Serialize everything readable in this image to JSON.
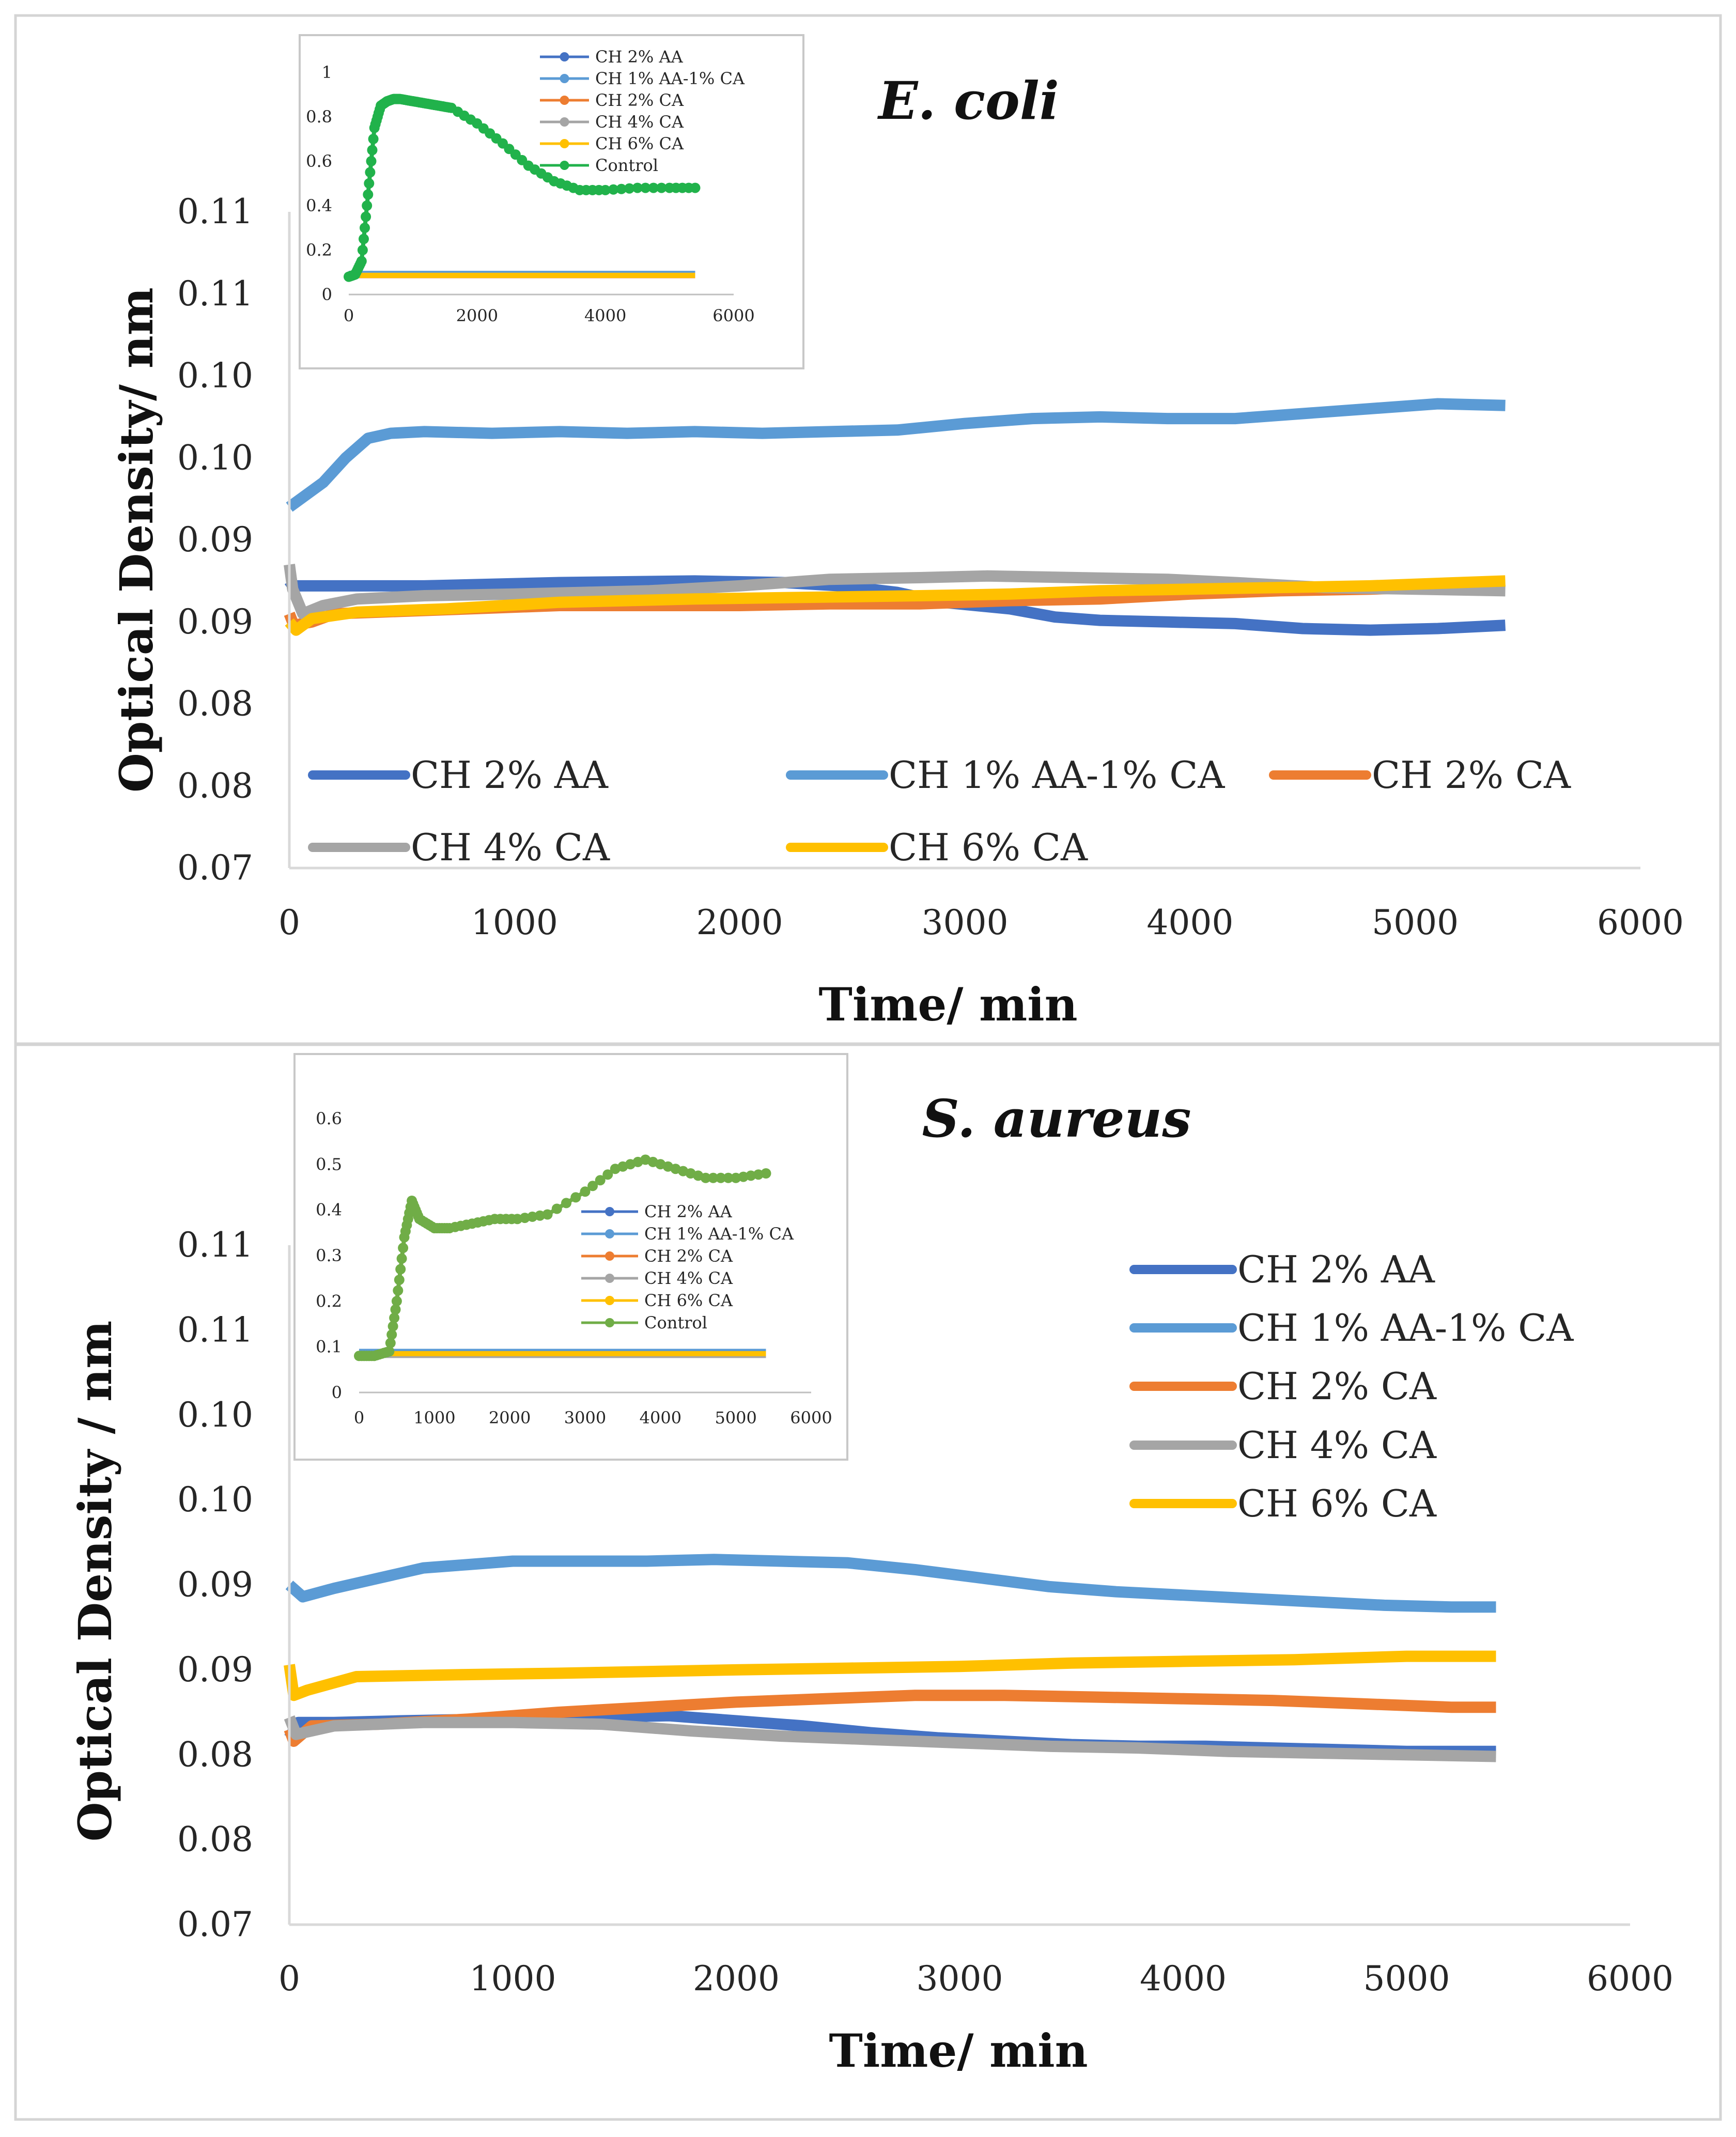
{
  "chart_data": [
    {
      "type": "line",
      "title": "E. coli",
      "xlabel": "Time/ min",
      "ylabel": "Optical Density/ nm",
      "xlim": [
        0,
        6000
      ],
      "ylim": [
        0.07,
        0.11
      ],
      "x_ticks": [
        "0",
        "1000",
        "2000",
        "3000",
        "4000",
        "5000",
        "6000"
      ],
      "y_ticks": [
        "0.07",
        "0.08",
        "0.08",
        "0.09",
        "0.09",
        "0.10",
        "0.10",
        "0.11",
        "0.11"
      ],
      "legend_position": "bottom-inside",
      "series": [
        {
          "name": "CH 2% AA",
          "color": "#4472C4",
          "x": [
            0,
            10,
            30,
            300,
            600,
            1200,
            1800,
            2200,
            2450,
            2700,
            2900,
            3200,
            3400,
            3600,
            3900,
            4200,
            4500,
            4800,
            5100,
            5400
          ],
          "y": [
            0.0875,
            0.0873,
            0.0872,
            0.0872,
            0.0872,
            0.0874,
            0.0875,
            0.0874,
            0.0872,
            0.0868,
            0.0862,
            0.0858,
            0.0853,
            0.0851,
            0.085,
            0.0849,
            0.0846,
            0.0845,
            0.0846,
            0.0848
          ]
        },
        {
          "name": "CH 1% AA-1% CA",
          "color": "#5B9BD5",
          "x": [
            0,
            60,
            150,
            250,
            350,
            450,
            600,
            900,
            1200,
            1500,
            1800,
            2100,
            2400,
            2700,
            3000,
            3300,
            3600,
            3900,
            4200,
            4500,
            4800,
            5100,
            5400
          ],
          "y": [
            0.092,
            0.0926,
            0.0935,
            0.095,
            0.0962,
            0.0965,
            0.0966,
            0.0965,
            0.0966,
            0.0965,
            0.0966,
            0.0965,
            0.0966,
            0.0967,
            0.0971,
            0.0974,
            0.0975,
            0.0974,
            0.0974,
            0.0977,
            0.098,
            0.0983,
            0.0982
          ]
        },
        {
          "name": "CH 2% CA",
          "color": "#ED7D31",
          "x": [
            0,
            20,
            100,
            200,
            400,
            800,
            1200,
            1600,
            2000,
            2400,
            2800,
            3200,
            3600,
            4000,
            4400,
            4800,
            5200,
            5400
          ],
          "y": [
            0.0855,
            0.0848,
            0.085,
            0.0855,
            0.0856,
            0.0858,
            0.086,
            0.086,
            0.086,
            0.0861,
            0.0861,
            0.0863,
            0.0864,
            0.0867,
            0.0869,
            0.087,
            0.0872,
            0.0872
          ]
        },
        {
          "name": "CH 4% CA",
          "color": "#A5A5A5",
          "x": [
            0,
            15,
            60,
            150,
            300,
            600,
            1000,
            1300,
            1600,
            2000,
            2400,
            2800,
            3100,
            3500,
            3900,
            4200,
            4600,
            5000,
            5400
          ],
          "y": [
            0.0885,
            0.087,
            0.0855,
            0.086,
            0.0864,
            0.0866,
            0.0867,
            0.0868,
            0.0869,
            0.0872,
            0.0876,
            0.0877,
            0.0878,
            0.0877,
            0.0876,
            0.0874,
            0.0871,
            0.087,
            0.0869
          ]
        },
        {
          "name": "CH 6% CA",
          "color": "#FFC000",
          "x": [
            0,
            30,
            100,
            300,
            700,
            1200,
            1800,
            2300,
            2800,
            3200,
            3600,
            4000,
            4400,
            4800,
            5200,
            5400
          ],
          "y": [
            0.085,
            0.0845,
            0.0852,
            0.0856,
            0.0858,
            0.0862,
            0.0864,
            0.0865,
            0.0866,
            0.0867,
            0.0869,
            0.087,
            0.0871,
            0.0872,
            0.0874,
            0.0875
          ]
        }
      ],
      "inset": {
        "xlim": [
          0,
          6000
        ],
        "ylim": [
          0,
          1
        ],
        "x_ticks": [
          "0",
          "2000",
          "4000",
          "6000"
        ],
        "y_ticks": [
          "0",
          "0.2",
          "0.4",
          "0.6",
          "0.8",
          "1"
        ],
        "legend_position": "top-right",
        "series": [
          {
            "name": "CH 2% AA",
            "color": "#4472C4",
            "x": [
              0,
              5400
            ],
            "y": [
              0.09,
              0.09
            ]
          },
          {
            "name": "CH 1% AA-1% CA",
            "color": "#5B9BD5",
            "x": [
              0,
              5400
            ],
            "y": [
              0.095,
              0.095
            ]
          },
          {
            "name": "CH 2% CA",
            "color": "#ED7D31",
            "x": [
              0,
              5400
            ],
            "y": [
              0.085,
              0.085
            ]
          },
          {
            "name": "CH 4% CA",
            "color": "#A5A5A5",
            "x": [
              0,
              5400
            ],
            "y": [
              0.087,
              0.087
            ]
          },
          {
            "name": "CH 6% CA",
            "color": "#FFC000",
            "x": [
              0,
              5400
            ],
            "y": [
              0.086,
              0.086
            ]
          },
          {
            "name": "Control",
            "color": "#21B24B",
            "x": [
              0,
              100,
              200,
              300,
              400,
              500,
              600,
              700,
              800,
              1000,
              1200,
              1400,
              1600,
              2000,
              2400,
              2800,
              3200,
              3600,
              4000,
              4500,
              5000,
              5400
            ],
            "y": [
              0.08,
              0.09,
              0.15,
              0.45,
              0.75,
              0.85,
              0.87,
              0.88,
              0.88,
              0.87,
              0.86,
              0.85,
              0.84,
              0.77,
              0.68,
              0.58,
              0.51,
              0.47,
              0.47,
              0.48,
              0.48,
              0.48
            ]
          }
        ]
      }
    },
    {
      "type": "line",
      "title": "S. aureus",
      "xlabel": "Time/ min",
      "ylabel": "Optical Density / nm",
      "xlim": [
        0,
        6000
      ],
      "ylim": [
        0.07,
        0.11
      ],
      "x_ticks": [
        "0",
        "1000",
        "2000",
        "3000",
        "4000",
        "5000",
        "6000"
      ],
      "y_ticks": [
        "0.07",
        "0.08",
        "0.08",
        "0.09",
        "0.09",
        "0.10",
        "0.10",
        "0.11",
        "0.11"
      ],
      "legend_position": "right",
      "series": [
        {
          "name": "CH 2% AA",
          "color": "#4472C4",
          "x": [
            0,
            40,
            200,
            500,
            900,
            1300,
            1700,
            2000,
            2300,
            2600,
            2900,
            3200,
            3500,
            3800,
            4100,
            4400,
            4700,
            5000,
            5400
          ],
          "y": [
            0.081,
            0.0819,
            0.0819,
            0.082,
            0.0821,
            0.0822,
            0.0823,
            0.082,
            0.0817,
            0.0813,
            0.081,
            0.0808,
            0.0806,
            0.0805,
            0.0805,
            0.0804,
            0.0803,
            0.0802,
            0.0802
          ]
        },
        {
          "name": "CH 1% AA-1% CA",
          "color": "#5B9BD5",
          "x": [
            0,
            60,
            200,
            400,
            600,
            800,
            1000,
            1300,
            1600,
            1900,
            2200,
            2500,
            2800,
            3100,
            3400,
            3700,
            4000,
            4300,
            4600,
            4900,
            5200,
            5400
          ],
          "y": [
            0.09,
            0.0893,
            0.0898,
            0.0904,
            0.091,
            0.0912,
            0.0914,
            0.0914,
            0.0914,
            0.0915,
            0.0914,
            0.0913,
            0.0909,
            0.0904,
            0.0899,
            0.0896,
            0.0894,
            0.0892,
            0.089,
            0.0888,
            0.0887,
            0.0887
          ]
        },
        {
          "name": "CH 2% CA",
          "color": "#ED7D31",
          "x": [
            0,
            20,
            100,
            400,
            800,
            1200,
            1600,
            2000,
            2400,
            2800,
            3200,
            3600,
            4000,
            4400,
            4800,
            5200,
            5400
          ],
          "y": [
            0.0815,
            0.0808,
            0.0817,
            0.0818,
            0.0821,
            0.0825,
            0.0828,
            0.0831,
            0.0833,
            0.0835,
            0.0835,
            0.0834,
            0.0833,
            0.0832,
            0.083,
            0.0828,
            0.0828
          ]
        },
        {
          "name": "CH 4% CA",
          "color": "#A5A5A5",
          "x": [
            0,
            30,
            200,
            600,
            1000,
            1400,
            1800,
            2200,
            2600,
            3000,
            3400,
            3800,
            4200,
            4600,
            5000,
            5400
          ],
          "y": [
            0.0822,
            0.0812,
            0.0817,
            0.0819,
            0.0819,
            0.0818,
            0.0814,
            0.0811,
            0.0809,
            0.0807,
            0.0805,
            0.0804,
            0.0802,
            0.0801,
            0.08,
            0.0799
          ]
        },
        {
          "name": "CH 6% CA",
          "color": "#FFC000",
          "x": [
            0,
            20,
            80,
            300,
            700,
            1200,
            1600,
            2000,
            2500,
            3000,
            3500,
            4000,
            4500,
            5000,
            5400
          ],
          "y": [
            0.0853,
            0.0835,
            0.0838,
            0.0846,
            0.0847,
            0.0848,
            0.0849,
            0.085,
            0.0851,
            0.0852,
            0.0854,
            0.0855,
            0.0856,
            0.0858,
            0.0858
          ]
        }
      ],
      "inset": {
        "xlim": [
          0,
          6000
        ],
        "ylim": [
          0,
          0.6
        ],
        "x_ticks": [
          "0",
          "1000",
          "2000",
          "3000",
          "4000",
          "5000",
          "6000"
        ],
        "y_ticks": [
          "0",
          "0.1",
          "0.2",
          "0.3",
          "0.4",
          "0.5",
          "0.6"
        ],
        "legend_position": "center-right",
        "series": [
          {
            "name": "CH 2% AA",
            "color": "#4472C4",
            "x": [
              0,
              5400
            ],
            "y": [
              0.088,
              0.088
            ]
          },
          {
            "name": "CH 1% AA-1% CA",
            "color": "#5B9BD5",
            "x": [
              0,
              5400
            ],
            "y": [
              0.09,
              0.09
            ]
          },
          {
            "name": "CH 2% CA",
            "color": "#ED7D31",
            "x": [
              0,
              5400
            ],
            "y": [
              0.083,
              0.083
            ]
          },
          {
            "name": "CH 4% CA",
            "color": "#A5A5A5",
            "x": [
              0,
              5400
            ],
            "y": [
              0.081,
              0.081
            ]
          },
          {
            "name": "CH 6% CA",
            "color": "#FFC000",
            "x": [
              0,
              5400
            ],
            "y": [
              0.085,
              0.085
            ]
          },
          {
            "name": "Control",
            "color": "#70AD47",
            "x": [
              0,
              200,
              400,
              500,
              600,
              700,
              800,
              1000,
              1200,
              1500,
              1800,
              2100,
              2500,
              3000,
              3400,
              3800,
              4200,
              4600,
              5000,
              5400
            ],
            "y": [
              0.08,
              0.08,
              0.09,
              0.2,
              0.34,
              0.42,
              0.38,
              0.36,
              0.36,
              0.37,
              0.38,
              0.38,
              0.39,
              0.44,
              0.49,
              0.51,
              0.49,
              0.47,
              0.47,
              0.48
            ]
          }
        ]
      }
    }
  ]
}
